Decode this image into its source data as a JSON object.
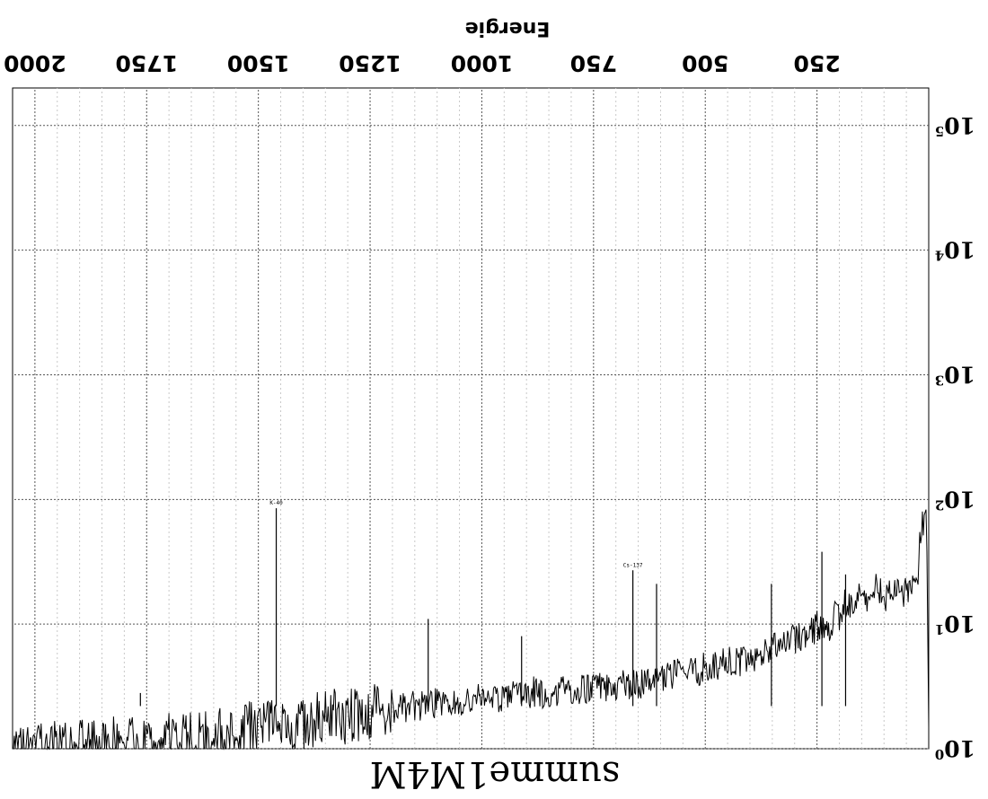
{
  "chart_data": {
    "type": "line",
    "orientation": "rotated-180",
    "title": "summe1M4M",
    "xlabel": "Energie",
    "ylabel": "",
    "x_ticks": [
      "2000",
      "1750",
      "1500",
      "1250",
      "1000",
      "750",
      "500",
      "250"
    ],
    "x_tick_values": [
      2000,
      1750,
      1500,
      1250,
      1000,
      750,
      500,
      250
    ],
    "xlim": [
      0,
      2050
    ],
    "y_scale": "log",
    "ylim": [
      1,
      200000
    ],
    "y_ticks": [
      {
        "base": "10",
        "exp": "0",
        "value": 1
      },
      {
        "base": "10",
        "exp": "1",
        "value": 10
      },
      {
        "base": "10",
        "exp": "2",
        "value": 100
      },
      {
        "base": "10",
        "exp": "3",
        "value": 1000
      },
      {
        "base": "10",
        "exp": "4",
        "value": 10000
      },
      {
        "base": "10",
        "exp": "5",
        "value": 100000
      }
    ],
    "grid": true,
    "series": [
      {
        "x": [
          0,
          5,
          10,
          15,
          20,
          25,
          30,
          40,
          50,
          60,
          70,
          80,
          90,
          100,
          110,
          120,
          130,
          140,
          150,
          160,
          170,
          180,
          190,
          200,
          210,
          220,
          230,
          240,
          250,
          260,
          270,
          280,
          290,
          300,
          320,
          340,
          360,
          380,
          400,
          420,
          440,
          460,
          480,
          500,
          520,
          540,
          560,
          580,
          600,
          620,
          640,
          660,
          680,
          700,
          720,
          740,
          760,
          780,
          800,
          820,
          840,
          860,
          880,
          900,
          920,
          940,
          960,
          980,
          1000,
          1020,
          1040,
          1060,
          1080,
          1100,
          1120,
          1140,
          1160,
          1180,
          1200,
          1220,
          1240,
          1260,
          1280,
          1300,
          1320,
          1340,
          1360,
          1380,
          1400,
          1420,
          1440,
          1460,
          1480,
          1500,
          1520,
          1540,
          1560,
          1580,
          1600,
          1650,
          1700,
          1750,
          1800,
          1850,
          1900,
          1950,
          2000
        ],
        "values": [
          1.5,
          85,
          75,
          60,
          48,
          19,
          21,
          20,
          19,
          16,
          18,
          19,
          17,
          16,
          19,
          20,
          18,
          14,
          17,
          16,
          13,
          15,
          14,
          11,
          12,
          10,
          9,
          9,
          10,
          8.5,
          9,
          8,
          8,
          7.5,
          7,
          6.5,
          6,
          5.5,
          5.5,
          5,
          5.2,
          4.8,
          4.5,
          4.5,
          4.2,
          4,
          4,
          3.8,
          3.6,
          3.5,
          3.4,
          3.3,
          3.3,
          3.2,
          3.1,
          3.2,
          3,
          3,
          3,
          2.9,
          2.8,
          2.8,
          2.9,
          2.7,
          2.7,
          2.6,
          2.6,
          2.5,
          2.6,
          2.5,
          2.4,
          2.4,
          2.3,
          2.3,
          2.3,
          2.2,
          2.2,
          2.1,
          2.1,
          2.0,
          2.0,
          1.9,
          1.9,
          1.8,
          1.8,
          1.8,
          1.7,
          1.7,
          1.6,
          1.6,
          1.6,
          1.5,
          1.5,
          1.6,
          1.5,
          1.4,
          1.4,
          1.3,
          1.3,
          1.2,
          1.2,
          1.1,
          1.1,
          1.1,
          1.05,
          1.05,
          1.0
        ]
      }
    ],
    "peaks": [
      {
        "x": 1460,
        "y": 85,
        "label": "K-40"
      },
      {
        "x": 662,
        "y": 27,
        "label": "Cs-137"
      },
      {
        "x": 609,
        "y": 21,
        "label": ""
      },
      {
        "x": 352,
        "y": 21,
        "label": ""
      },
      {
        "x": 239,
        "y": 38,
        "label": ""
      },
      {
        "x": 186,
        "y": 25,
        "label": ""
      },
      {
        "x": 1120,
        "y": 11,
        "label": ""
      },
      {
        "x": 1764,
        "y": 2.8,
        "label": ""
      },
      {
        "x": 911,
        "y": 8,
        "label": ""
      }
    ]
  }
}
